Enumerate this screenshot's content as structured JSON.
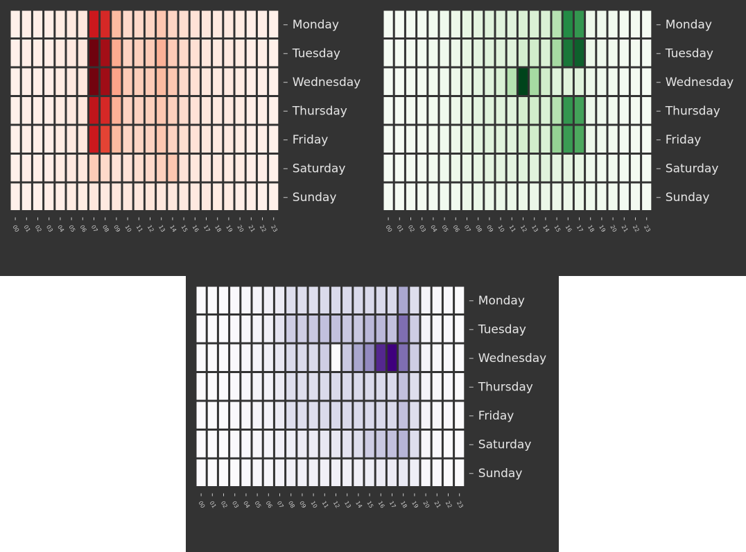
{
  "chart_data": [
    {
      "type": "heatmap",
      "colormap": "Reds",
      "colors": [
        "#fff5f0",
        "#fcbba1",
        "#fb6a4a",
        "#cb181d",
        "#67000d"
      ],
      "grid_color": "#333333",
      "x": [
        "00",
        "01",
        "02",
        "03",
        "04",
        "05",
        "06",
        "07",
        "08",
        "09",
        "10",
        "11",
        "12",
        "13",
        "14",
        "15",
        "16",
        "17",
        "18",
        "19",
        "20",
        "21",
        "22",
        "23"
      ],
      "y": [
        "Monday",
        "Tuesday",
        "Wednesday",
        "Thursday",
        "Friday",
        "Saturday",
        "Sunday"
      ],
      "values": [
        [
          0.02,
          0.03,
          0.03,
          0.03,
          0.04,
          0.05,
          0.06,
          0.75,
          0.7,
          0.25,
          0.12,
          0.12,
          0.14,
          0.2,
          0.14,
          0.1,
          0.08,
          0.06,
          0.05,
          0.05,
          0.04,
          0.03,
          0.03,
          0.02
        ],
        [
          0.02,
          0.03,
          0.03,
          0.03,
          0.04,
          0.05,
          0.06,
          0.98,
          0.85,
          0.3,
          0.15,
          0.16,
          0.18,
          0.28,
          0.18,
          0.12,
          0.09,
          0.06,
          0.05,
          0.05,
          0.04,
          0.03,
          0.03,
          0.02
        ],
        [
          0.02,
          0.03,
          0.03,
          0.03,
          0.04,
          0.05,
          0.06,
          0.97,
          0.86,
          0.32,
          0.18,
          0.17,
          0.18,
          0.25,
          0.2,
          0.12,
          0.09,
          0.06,
          0.05,
          0.05,
          0.04,
          0.03,
          0.03,
          0.02
        ],
        [
          0.02,
          0.03,
          0.03,
          0.03,
          0.04,
          0.05,
          0.06,
          0.78,
          0.7,
          0.28,
          0.15,
          0.15,
          0.16,
          0.2,
          0.16,
          0.11,
          0.08,
          0.06,
          0.05,
          0.05,
          0.04,
          0.03,
          0.03,
          0.02
        ],
        [
          0.02,
          0.03,
          0.03,
          0.03,
          0.04,
          0.05,
          0.06,
          0.75,
          0.62,
          0.25,
          0.14,
          0.14,
          0.15,
          0.2,
          0.15,
          0.1,
          0.08,
          0.06,
          0.05,
          0.05,
          0.04,
          0.03,
          0.03,
          0.02
        ],
        [
          0.02,
          0.03,
          0.03,
          0.03,
          0.04,
          0.05,
          0.06,
          0.18,
          0.12,
          0.08,
          0.08,
          0.1,
          0.12,
          0.16,
          0.2,
          0.08,
          0.06,
          0.05,
          0.05,
          0.04,
          0.04,
          0.03,
          0.03,
          0.02
        ],
        [
          0.02,
          0.02,
          0.02,
          0.03,
          0.03,
          0.04,
          0.04,
          0.06,
          0.05,
          0.06,
          0.06,
          0.06,
          0.07,
          0.06,
          0.06,
          0.05,
          0.05,
          0.05,
          0.04,
          0.04,
          0.03,
          0.03,
          0.02,
          0.02
        ]
      ]
    },
    {
      "type": "heatmap",
      "colormap": "Greens",
      "colors": [
        "#f7fcf5",
        "#c7e9c0",
        "#74c476",
        "#238b45",
        "#00441b"
      ],
      "grid_color": "#333333",
      "x": [
        "00",
        "01",
        "02",
        "03",
        "04",
        "05",
        "06",
        "07",
        "08",
        "09",
        "10",
        "11",
        "12",
        "13",
        "14",
        "15",
        "16",
        "17",
        "18",
        "19",
        "20",
        "21",
        "22",
        "23"
      ],
      "y": [
        "Monday",
        "Tuesday",
        "Wednesday",
        "Thursday",
        "Friday",
        "Saturday",
        "Sunday"
      ],
      "values": [
        [
          0.01,
          0.01,
          0.02,
          0.02,
          0.03,
          0.04,
          0.05,
          0.08,
          0.1,
          0.12,
          0.12,
          0.12,
          0.15,
          0.15,
          0.15,
          0.3,
          0.75,
          0.7,
          0.05,
          0.04,
          0.03,
          0.02,
          0.02,
          0.01
        ],
        [
          0.01,
          0.01,
          0.02,
          0.02,
          0.03,
          0.04,
          0.05,
          0.08,
          0.1,
          0.12,
          0.12,
          0.12,
          0.18,
          0.2,
          0.15,
          0.35,
          0.82,
          0.9,
          0.05,
          0.04,
          0.03,
          0.02,
          0.02,
          0.01
        ],
        [
          0.01,
          0.01,
          0.02,
          0.02,
          0.03,
          0.04,
          0.05,
          0.08,
          0.1,
          0.12,
          0.15,
          0.3,
          1.0,
          0.35,
          0.2,
          0.12,
          0.12,
          0.12,
          0.05,
          0.04,
          0.03,
          0.02,
          0.02,
          0.01
        ],
        [
          0.01,
          0.01,
          0.02,
          0.02,
          0.03,
          0.04,
          0.05,
          0.08,
          0.1,
          0.12,
          0.12,
          0.12,
          0.18,
          0.2,
          0.15,
          0.3,
          0.7,
          0.65,
          0.05,
          0.04,
          0.03,
          0.02,
          0.02,
          0.01
        ],
        [
          0.01,
          0.01,
          0.02,
          0.02,
          0.03,
          0.04,
          0.05,
          0.08,
          0.1,
          0.12,
          0.12,
          0.12,
          0.18,
          0.2,
          0.15,
          0.4,
          0.68,
          0.62,
          0.05,
          0.04,
          0.03,
          0.02,
          0.02,
          0.01
        ],
        [
          0.01,
          0.01,
          0.02,
          0.02,
          0.03,
          0.04,
          0.05,
          0.06,
          0.08,
          0.1,
          0.1,
          0.1,
          0.12,
          0.12,
          0.12,
          0.1,
          0.1,
          0.08,
          0.04,
          0.03,
          0.03,
          0.02,
          0.02,
          0.01
        ],
        [
          0.01,
          0.01,
          0.02,
          0.02,
          0.02,
          0.03,
          0.03,
          0.05,
          0.06,
          0.06,
          0.06,
          0.06,
          0.06,
          0.06,
          0.06,
          0.05,
          0.05,
          0.05,
          0.04,
          0.03,
          0.03,
          0.02,
          0.02,
          0.01
        ]
      ]
    },
    {
      "type": "heatmap",
      "colormap": "Purples",
      "colors": [
        "#fcfbfd",
        "#dadaeb",
        "#9e9ac8",
        "#6a51a3",
        "#3f007d"
      ],
      "grid_color": "#333333",
      "x": [
        "00",
        "01",
        "02",
        "03",
        "04",
        "05",
        "06",
        "07",
        "08",
        "09",
        "10",
        "11",
        "12",
        "13",
        "14",
        "15",
        "16",
        "17",
        "18",
        "19",
        "20",
        "21",
        "22",
        "23"
      ],
      "y": [
        "Monday",
        "Tuesday",
        "Wednesday",
        "Thursday",
        "Friday",
        "Saturday",
        "Sunday"
      ],
      "values": [
        [
          0.01,
          0.01,
          0.01,
          0.02,
          0.03,
          0.05,
          0.08,
          0.12,
          0.22,
          0.22,
          0.22,
          0.25,
          0.25,
          0.25,
          0.25,
          0.25,
          0.25,
          0.25,
          0.45,
          0.22,
          0.05,
          0.03,
          0.02,
          0.01
        ],
        [
          0.01,
          0.01,
          0.01,
          0.02,
          0.03,
          0.05,
          0.08,
          0.18,
          0.3,
          0.3,
          0.32,
          0.35,
          0.35,
          0.32,
          0.32,
          0.38,
          0.38,
          0.35,
          0.65,
          0.3,
          0.05,
          0.03,
          0.02,
          0.01
        ],
        [
          0.01,
          0.01,
          0.01,
          0.02,
          0.03,
          0.05,
          0.08,
          0.15,
          0.25,
          0.25,
          0.25,
          0.3,
          0.0,
          0.32,
          0.45,
          0.55,
          0.88,
          1.0,
          0.65,
          0.3,
          0.05,
          0.03,
          0.02,
          0.01
        ],
        [
          0.01,
          0.01,
          0.01,
          0.02,
          0.03,
          0.05,
          0.06,
          0.12,
          0.22,
          0.22,
          0.22,
          0.25,
          0.25,
          0.25,
          0.25,
          0.25,
          0.25,
          0.25,
          0.35,
          0.22,
          0.05,
          0.03,
          0.02,
          0.01
        ],
        [
          0.01,
          0.01,
          0.01,
          0.02,
          0.03,
          0.05,
          0.06,
          0.12,
          0.22,
          0.22,
          0.22,
          0.25,
          0.25,
          0.25,
          0.25,
          0.25,
          0.25,
          0.25,
          0.35,
          0.22,
          0.05,
          0.03,
          0.02,
          0.01
        ],
        [
          0.01,
          0.01,
          0.01,
          0.02,
          0.02,
          0.04,
          0.05,
          0.08,
          0.1,
          0.12,
          0.12,
          0.15,
          0.15,
          0.18,
          0.22,
          0.3,
          0.32,
          0.35,
          0.4,
          0.22,
          0.04,
          0.02,
          0.01,
          0.01
        ],
        [
          0.01,
          0.01,
          0.01,
          0.01,
          0.02,
          0.03,
          0.04,
          0.06,
          0.08,
          0.08,
          0.08,
          0.08,
          0.08,
          0.08,
          0.08,
          0.1,
          0.12,
          0.12,
          0.14,
          0.1,
          0.03,
          0.02,
          0.01,
          0.01
        ]
      ]
    }
  ]
}
